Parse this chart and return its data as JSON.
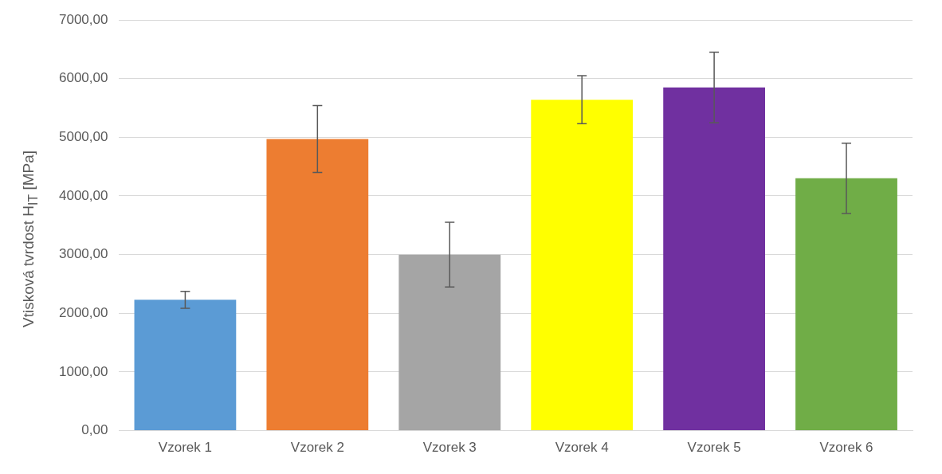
{
  "chart_data": {
    "type": "bar",
    "ylabel": "Vtisková tvrdost H$_{IT}$ [MPa]",
    "categories": [
      "Vzorek 1",
      "Vzorek 2",
      "Vzorek 3",
      "Vzorek 4",
      "Vzorek 5",
      "Vzorek 6"
    ],
    "values": [
      2230,
      4970,
      3000,
      5640,
      5850,
      4300
    ],
    "colors": [
      "#5b9bd5",
      "#ed7d31",
      "#a5a5a5",
      "#ffff00",
      "#7030a0",
      "#70ad47"
    ],
    "errors": [
      145,
      570,
      550,
      410,
      600,
      600
    ],
    "ylim": [
      0,
      7000
    ],
    "yticks": [
      {
        "value": 0,
        "label": "0,00"
      },
      {
        "value": 1000,
        "label": "1000,00"
      },
      {
        "value": 2000,
        "label": "2000,00"
      },
      {
        "value": 3000,
        "label": "3000,00"
      },
      {
        "value": 4000,
        "label": "4000,00"
      },
      {
        "value": 5000,
        "label": "5000,00"
      },
      {
        "value": 6000,
        "label": "6000,00"
      },
      {
        "value": 7000,
        "label": "7000,00"
      }
    ],
    "grid": "y",
    "legend": false
  }
}
